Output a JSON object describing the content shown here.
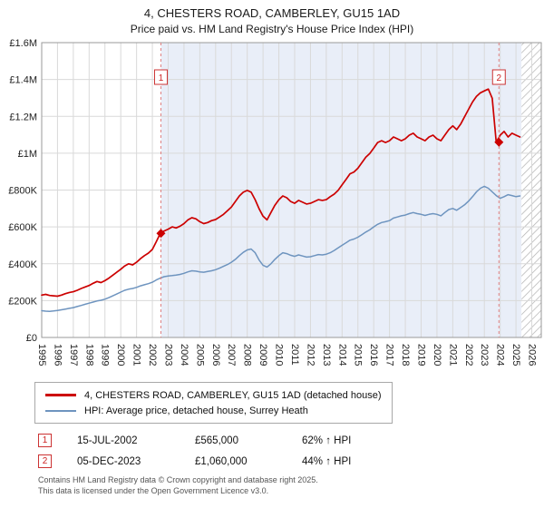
{
  "page": {
    "title": "4, CHESTERS ROAD, CAMBERLEY, GU15 1AD",
    "subtitle": "Price paid vs. HM Land Registry's House Price Index (HPI)"
  },
  "chart_data": {
    "type": "line",
    "title": "4, CHESTERS ROAD, CAMBERLEY, GU15 1AD",
    "subtitle": "Price paid vs. HM Land Registry's House Price Index (HPI)",
    "xlim": [
      1995,
      2026.6
    ],
    "ylim": [
      0,
      1600000
    ],
    "grid": true,
    "x_ticks": [
      1995,
      1996,
      1997,
      1998,
      1999,
      2000,
      2001,
      2002,
      2003,
      2004,
      2005,
      2006,
      2007,
      2008,
      2009,
      2010,
      2011,
      2012,
      2013,
      2014,
      2015,
      2016,
      2017,
      2018,
      2019,
      2020,
      2021,
      2022,
      2023,
      2024,
      2025,
      2026
    ],
    "y_ticks": [
      {
        "value": 0,
        "label": "£0"
      },
      {
        "value": 200000,
        "label": "£200K"
      },
      {
        "value": 400000,
        "label": "£400K"
      },
      {
        "value": 600000,
        "label": "£600K"
      },
      {
        "value": 800000,
        "label": "£800K"
      },
      {
        "value": 1000000,
        "label": "£1M"
      },
      {
        "value": 1200000,
        "label": "£1.2M"
      },
      {
        "value": 1400000,
        "label": "£1.4M"
      },
      {
        "value": 1600000,
        "label": "£1.6M"
      }
    ],
    "shaded_span": {
      "from": 2002.54,
      "to": 2025.35,
      "color": "#e9eef8"
    },
    "future_hatch_span": {
      "from": 2025.35,
      "to": 2026.6
    },
    "series": [
      {
        "name": "4, CHESTERS ROAD, CAMBERLEY, GU15 1AD (detached house)",
        "color": "#cc0000",
        "width": 1.7,
        "x_start": 1995.0,
        "x_step": 0.25,
        "values_gbp_thousands": [
          230,
          234,
          228,
          226,
          224,
          230,
          238,
          244,
          248,
          256,
          266,
          274,
          282,
          294,
          304,
          298,
          308,
          322,
          338,
          354,
          370,
          388,
          400,
          394,
          408,
          428,
          444,
          458,
          478,
          520,
          565,
          578,
          588,
          600,
          594,
          604,
          618,
          638,
          650,
          644,
          628,
          618,
          624,
          634,
          640,
          654,
          668,
          688,
          708,
          738,
          768,
          788,
          798,
          788,
          748,
          698,
          658,
          638,
          678,
          718,
          748,
          768,
          758,
          738,
          728,
          744,
          734,
          724,
          728,
          738,
          748,
          744,
          748,
          764,
          778,
          798,
          828,
          858,
          888,
          898,
          918,
          948,
          978,
          998,
          1028,
          1058,
          1068,
          1058,
          1068,
          1088,
          1078,
          1068,
          1078,
          1098,
          1108,
          1088,
          1078,
          1068,
          1088,
          1098,
          1078,
          1068,
          1098,
          1128,
          1148,
          1128,
          1158,
          1198,
          1238,
          1278,
          1308,
          1328,
          1338,
          1348,
          1298,
          1060,
          1098,
          1118,
          1088,
          1108,
          1098,
          1088
        ]
      },
      {
        "name": "HPI: Average price, detached house, Surrey Heath",
        "color": "#6e94bf",
        "width": 1.5,
        "x_start": 1995.0,
        "x_step": 0.25,
        "values_gbp_thousands": [
          145,
          143,
          142,
          144,
          146,
          150,
          154,
          158,
          162,
          168,
          174,
          180,
          186,
          192,
          198,
          202,
          208,
          216,
          226,
          236,
          246,
          256,
          262,
          266,
          272,
          280,
          286,
          292,
          300,
          312,
          322,
          330,
          334,
          336,
          338,
          342,
          348,
          356,
          362,
          360,
          356,
          354,
          358,
          362,
          368,
          376,
          386,
          396,
          408,
          424,
          444,
          462,
          475,
          480,
          460,
          420,
          392,
          382,
          400,
          424,
          444,
          460,
          455,
          446,
          440,
          448,
          442,
          436,
          438,
          444,
          450,
          448,
          452,
          460,
          472,
          486,
          500,
          514,
          528,
          534,
          544,
          558,
          572,
          584,
          600,
          614,
          624,
          628,
          634,
          648,
          654,
          660,
          664,
          672,
          678,
          672,
          668,
          662,
          668,
          672,
          668,
          660,
          678,
          694,
          700,
          690,
          705,
          720,
          740,
          764,
          790,
          810,
          820,
          810,
          790,
          770,
          755,
          764,
          775,
          770,
          764,
          768
        ]
      }
    ],
    "sales": [
      {
        "marker": "1",
        "x": 2002.54,
        "price": 565000,
        "date": "15-JUL-2002",
        "price_label": "£565,000",
        "vs_hpi": "62% ↑ HPI"
      },
      {
        "marker": "2",
        "x": 2023.92,
        "price": 1060000,
        "date": "05-DEC-2023",
        "price_label": "£1,060,000",
        "vs_hpi": "44% ↑ HPI"
      }
    ]
  },
  "legend": {
    "items": [
      {
        "label": "4, CHESTERS ROAD, CAMBERLEY, GU15 1AD (detached house)",
        "color": "#cc0000"
      },
      {
        "label": "HPI: Average price, detached house, Surrey Heath",
        "color": "#6e94bf"
      }
    ]
  },
  "annotations": {
    "rows": [
      {
        "num": "1",
        "date": "15-JUL-2002",
        "price": "£565,000",
        "change": "62% ↑ HPI"
      },
      {
        "num": "2",
        "date": "05-DEC-2023",
        "price": "£1,060,000",
        "change": "44% ↑ HPI"
      }
    ]
  },
  "footer": {
    "line1": "Contains HM Land Registry data © Crown copyright and database right 2025.",
    "line2": "This data is licensed under the Open Government Licence v3.0."
  }
}
